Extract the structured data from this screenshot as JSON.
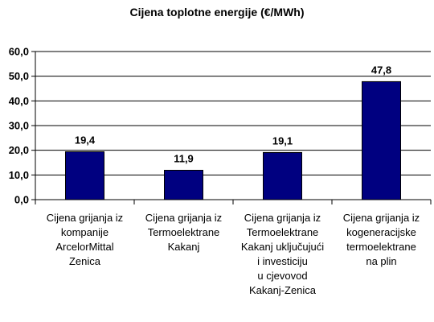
{
  "chart_data": {
    "type": "bar",
    "title": "Cijena toplotne energije (€/MWh)",
    "categories": [
      "Cijena grijanja iz\nkompanije\nArcelorMittal\nZenica",
      "Cijena grijanja iz\nTermoelektrane\nKakanj",
      "Cijena grijanja iz\nTermoelektrane\nKakanj uključujući\ni investiciju\nu  cjevovod\nKakanj-Zenica",
      "Cijena grijanja iz\nkogeneracijske\ntermoelektrane\nna plin"
    ],
    "values": [
      19.4,
      11.9,
      19.1,
      47.8
    ],
    "data_labels": [
      "19,4",
      "11,9",
      "19,1",
      "47,8"
    ],
    "ylim": [
      0,
      60
    ],
    "yticks": [
      0,
      10,
      20,
      30,
      40,
      50,
      60
    ],
    "ytick_labels": [
      "0,0",
      "10,0",
      "20,0",
      "30,0",
      "40,0",
      "50,0",
      "60,0"
    ],
    "grid": true,
    "legend": "none",
    "bar_color": "#000080",
    "grid_color": "#000000"
  }
}
